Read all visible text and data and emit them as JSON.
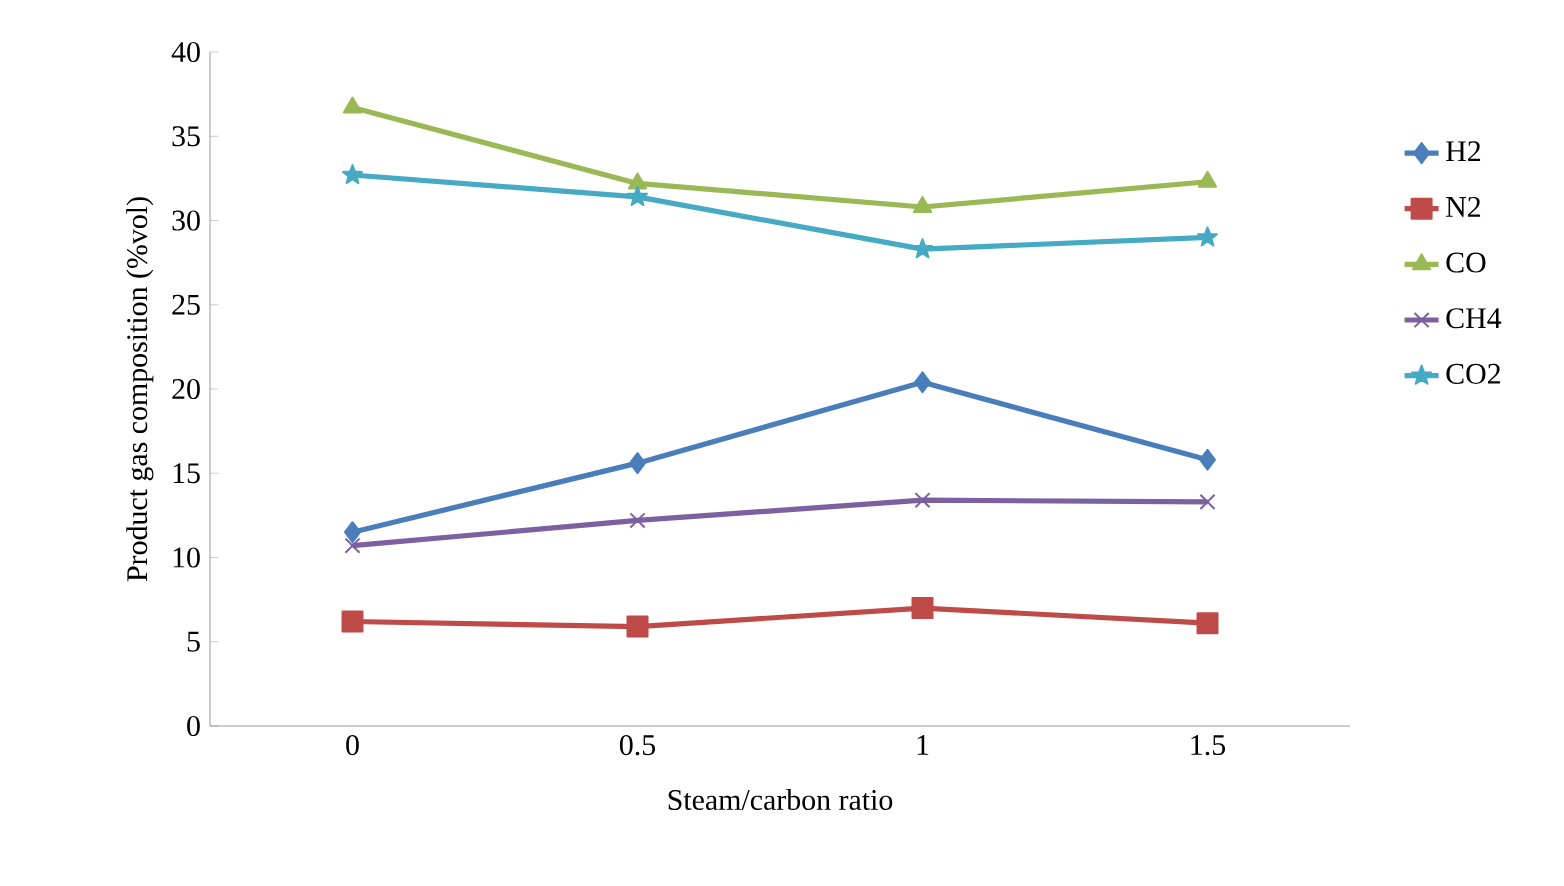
{
  "chart_data": {
    "type": "line",
    "xlabel": "Steam/carbon ratio",
    "ylabel": "Product gas composition (%vol)",
    "categories": [
      "0",
      "0.5",
      "1",
      "1.5"
    ],
    "series": [
      {
        "name": "H2",
        "color": "#4a7ebb",
        "marker": "diamond",
        "values": [
          11.5,
          15.6,
          20.4,
          15.8
        ]
      },
      {
        "name": "N2",
        "color": "#be4b48",
        "marker": "square",
        "values": [
          6.2,
          5.9,
          7.0,
          6.1
        ]
      },
      {
        "name": "CO",
        "color": "#98b954",
        "marker": "triangle",
        "values": [
          36.7,
          32.2,
          30.8,
          32.3
        ]
      },
      {
        "name": "CH4",
        "color": "#7d60a0",
        "marker": "cross",
        "values": [
          10.7,
          12.2,
          13.4,
          13.3
        ]
      },
      {
        "name": "CO2",
        "color": "#46aac5",
        "marker": "star",
        "values": [
          32.7,
          31.4,
          28.3,
          29.0
        ]
      }
    ],
    "ylim": [
      0,
      40
    ],
    "yticks": [
      0,
      5,
      10,
      15,
      20,
      25,
      30,
      35,
      40
    ],
    "grid": false,
    "legend": "right",
    "line_style": "solid"
  }
}
